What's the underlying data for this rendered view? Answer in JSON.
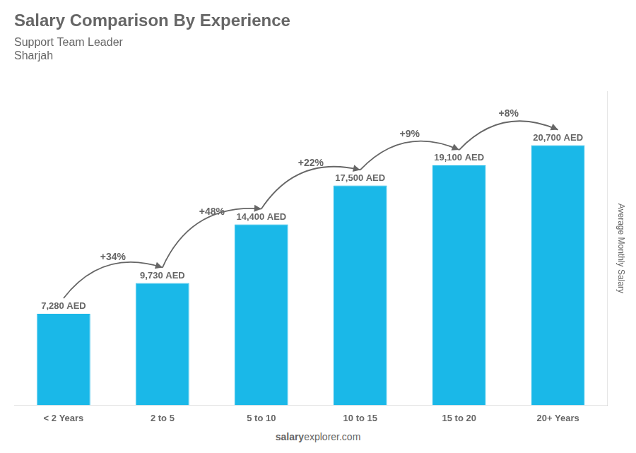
{
  "chart_data": {
    "type": "bar",
    "title": "Salary Comparison By Experience",
    "subtitle": [
      "Support Team Leader",
      "Sharjah"
    ],
    "categories": [
      "< 2 Years",
      "2 to 5",
      "5 to 10",
      "10 to 15",
      "15 to 20",
      "20+ Years"
    ],
    "values": [
      7280,
      9730,
      14400,
      17500,
      19100,
      20700
    ],
    "value_labels": [
      "7,280 AED",
      "9,730 AED",
      "14,400 AED",
      "17,500 AED",
      "19,100 AED",
      "20,700 AED"
    ],
    "data_labels": true,
    "color": "#1ab8e8",
    "ylabel": "Average Monthly Salary",
    "ylim": [
      0,
      25000
    ],
    "grid": false,
    "tick_labels": "x",
    "annotations": [
      "+34%",
      "+48%",
      "+22%",
      "+9%",
      "+8%"
    ],
    "footer": [
      "salary",
      "explorer.com"
    ]
  }
}
